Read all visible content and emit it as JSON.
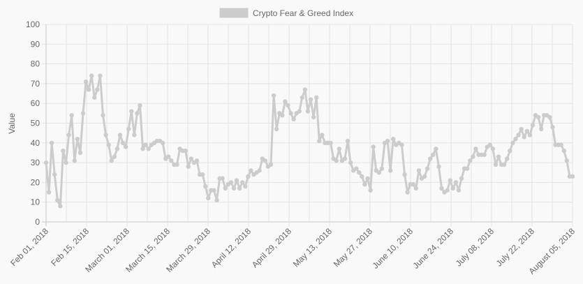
{
  "chart_data": {
    "type": "line",
    "title": "",
    "xlabel": "",
    "ylabel": "Value",
    "ylim": [
      0,
      100
    ],
    "yticks": [
      0,
      10,
      20,
      30,
      40,
      50,
      60,
      70,
      80,
      90,
      100
    ],
    "grid": true,
    "legend_position": "top-center",
    "x_tick_labels": [
      "Feb 01, 2018",
      "Feb 15, 2018",
      "March 01, 2018",
      "March 15, 2018",
      "March 29, 2018",
      "April 12, 2018",
      "April 29, 2018",
      "May 13, 2018",
      "May 27, 2018",
      "June 10, 2018",
      "June 24, 2018",
      "July 08, 2018",
      "July 22, 2018",
      "August 05, 2018"
    ],
    "x_start": "2018-02-01",
    "x_end": "2018-08-05",
    "series": [
      {
        "name": "Crypto Fear & Greed Index",
        "color": "#cccccc",
        "x": [
          "2018-02-01",
          "2018-02-02",
          "2018-02-03",
          "2018-02-04",
          "2018-02-05",
          "2018-02-06",
          "2018-02-07",
          "2018-02-08",
          "2018-02-09",
          "2018-02-10",
          "2018-02-11",
          "2018-02-12",
          "2018-02-13",
          "2018-02-14",
          "2018-02-15",
          "2018-02-16",
          "2018-02-17",
          "2018-02-18",
          "2018-02-19",
          "2018-02-20",
          "2018-02-21",
          "2018-02-22",
          "2018-02-23",
          "2018-02-24",
          "2018-02-25",
          "2018-02-26",
          "2018-02-27",
          "2018-02-28",
          "2018-03-01",
          "2018-03-02",
          "2018-03-03",
          "2018-03-04",
          "2018-03-05",
          "2018-03-06",
          "2018-03-07",
          "2018-03-08",
          "2018-03-09",
          "2018-03-10",
          "2018-03-11",
          "2018-03-12",
          "2018-03-13",
          "2018-03-14",
          "2018-03-15",
          "2018-03-16",
          "2018-03-17",
          "2018-03-18",
          "2018-03-19",
          "2018-03-20",
          "2018-03-21",
          "2018-03-22",
          "2018-03-23",
          "2018-03-24",
          "2018-03-25",
          "2018-03-26",
          "2018-03-27",
          "2018-03-28",
          "2018-03-29",
          "2018-03-30",
          "2018-03-31",
          "2018-04-01",
          "2018-04-02",
          "2018-04-03",
          "2018-04-04",
          "2018-04-05",
          "2018-04-06",
          "2018-04-07",
          "2018-04-08",
          "2018-04-09",
          "2018-04-10",
          "2018-04-11",
          "2018-04-12",
          "2018-04-13",
          "2018-04-14",
          "2018-04-15",
          "2018-04-16",
          "2018-04-17",
          "2018-04-18",
          "2018-04-19",
          "2018-04-20",
          "2018-04-21",
          "2018-04-22",
          "2018-04-23",
          "2018-04-24",
          "2018-04-25",
          "2018-04-26",
          "2018-04-27",
          "2018-04-28",
          "2018-04-29",
          "2018-04-30",
          "2018-05-01",
          "2018-05-02",
          "2018-05-03",
          "2018-05-04",
          "2018-05-05",
          "2018-05-06",
          "2018-05-07",
          "2018-05-08",
          "2018-05-09",
          "2018-05-10",
          "2018-05-11",
          "2018-05-12",
          "2018-05-13",
          "2018-05-14",
          "2018-05-15",
          "2018-05-16",
          "2018-05-17",
          "2018-05-18",
          "2018-05-19",
          "2018-05-20",
          "2018-05-21",
          "2018-05-22",
          "2018-05-23",
          "2018-05-24",
          "2018-05-25",
          "2018-05-26",
          "2018-05-27",
          "2018-05-28",
          "2018-05-29",
          "2018-05-30",
          "2018-05-31",
          "2018-06-01",
          "2018-06-02",
          "2018-06-03",
          "2018-06-04",
          "2018-06-05",
          "2018-06-06",
          "2018-06-07",
          "2018-06-08",
          "2018-06-09",
          "2018-06-10",
          "2018-06-11",
          "2018-06-12",
          "2018-06-13",
          "2018-06-14",
          "2018-06-15",
          "2018-06-16",
          "2018-06-17",
          "2018-06-18",
          "2018-06-19",
          "2018-06-20",
          "2018-06-21",
          "2018-06-22",
          "2018-06-23",
          "2018-06-24",
          "2018-06-25",
          "2018-06-26",
          "2018-06-27",
          "2018-06-28",
          "2018-06-29",
          "2018-06-30",
          "2018-07-01",
          "2018-07-02",
          "2018-07-03",
          "2018-07-04",
          "2018-07-05",
          "2018-07-06",
          "2018-07-07",
          "2018-07-08",
          "2018-07-09",
          "2018-07-10",
          "2018-07-11",
          "2018-07-12",
          "2018-07-13",
          "2018-07-14",
          "2018-07-15",
          "2018-07-16",
          "2018-07-17",
          "2018-07-18",
          "2018-07-19",
          "2018-07-20",
          "2018-07-21",
          "2018-07-22",
          "2018-07-23",
          "2018-07-24",
          "2018-07-25",
          "2018-07-26",
          "2018-07-27",
          "2018-07-28",
          "2018-07-29",
          "2018-07-30",
          "2018-07-31",
          "2018-08-01",
          "2018-08-02",
          "2018-08-03",
          "2018-08-04",
          "2018-08-05"
        ],
        "values": [
          30,
          15,
          40,
          24,
          11,
          8,
          36,
          30,
          44,
          54,
          31,
          42,
          35,
          55,
          71,
          67,
          74,
          63,
          67,
          74,
          54,
          44,
          39,
          31,
          33,
          37,
          44,
          40,
          38,
          47,
          56,
          44,
          55,
          59,
          37,
          39,
          37,
          39,
          40,
          41,
          41,
          40,
          32,
          33,
          31,
          29,
          29,
          37,
          36,
          36,
          28,
          32,
          30,
          31,
          24,
          24,
          18,
          12,
          16,
          16,
          11,
          22,
          22,
          17,
          19,
          20,
          17,
          21,
          17,
          20,
          18,
          23,
          26,
          24,
          25,
          26,
          32,
          31,
          28,
          29,
          64,
          47,
          55,
          54,
          61,
          59,
          55,
          52,
          55,
          56,
          63,
          67,
          56,
          62,
          53,
          63,
          41,
          44,
          40,
          40,
          40,
          32,
          31,
          37,
          31,
          32,
          41,
          30,
          26,
          27,
          25,
          23,
          19,
          22,
          16,
          38,
          26,
          25,
          27,
          40,
          41,
          26,
          42,
          39,
          40,
          39,
          24,
          15,
          19,
          19,
          17,
          26,
          22,
          23,
          27,
          32,
          34,
          37,
          28,
          17,
          15,
          16,
          21,
          17,
          20,
          16,
          22,
          27,
          27,
          31,
          33,
          37,
          34,
          34,
          34,
          38,
          39,
          37,
          29,
          33,
          29,
          29,
          32,
          36,
          40,
          42,
          44,
          47,
          43,
          46,
          44,
          49,
          54,
          53,
          47,
          54,
          54,
          53,
          48,
          39,
          39,
          39,
          36,
          31,
          23,
          23
        ]
      }
    ]
  }
}
